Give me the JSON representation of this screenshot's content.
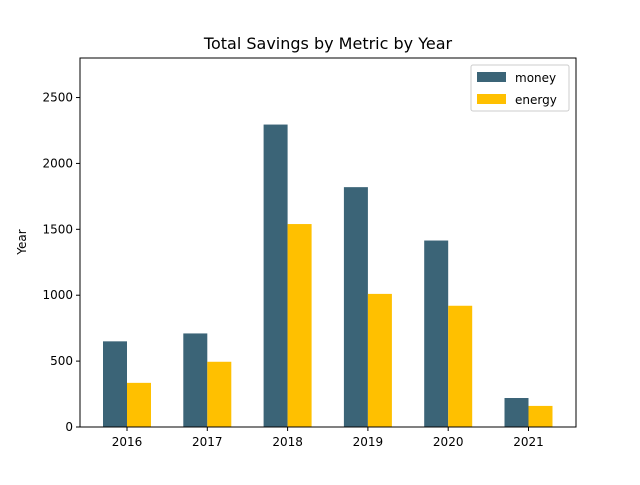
{
  "chart_data": {
    "type": "bar",
    "title": "Total Savings by Metric by Year",
    "xlabel": "",
    "ylabel": "Year",
    "categories": [
      "2016",
      "2017",
      "2018",
      "2019",
      "2020",
      "2021"
    ],
    "series": [
      {
        "name": "money",
        "color": "#3b6477",
        "values": [
          650,
          710,
          2295,
          1820,
          1415,
          220
        ]
      },
      {
        "name": "energy",
        "color": "#ffc000",
        "values": [
          335,
          495,
          1540,
          1010,
          920,
          160
        ]
      }
    ],
    "ylim": [
      0,
      2800
    ],
    "yticks": [
      0,
      500,
      1000,
      1500,
      2000,
      2500
    ],
    "grid": false,
    "legend_position": "top-right"
  }
}
